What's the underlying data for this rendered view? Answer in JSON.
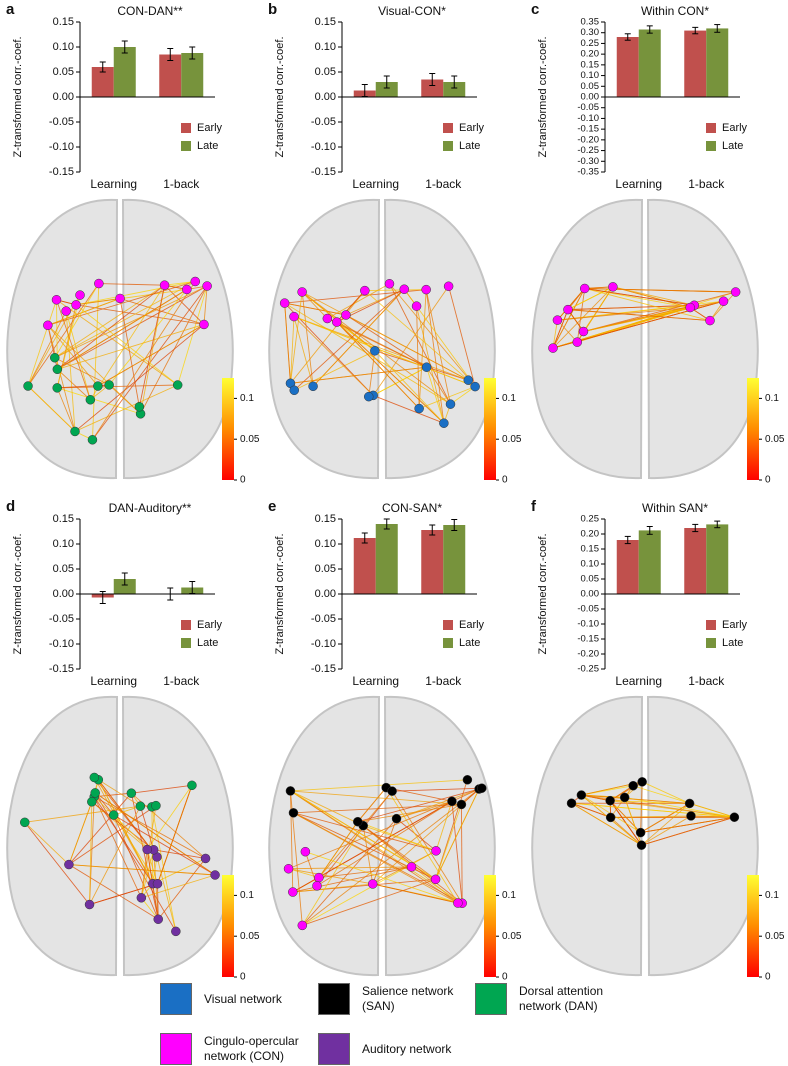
{
  "chart_data": [
    {
      "type": "bar",
      "panel": "a",
      "title": "CON-DAN**",
      "ylabel": "Z-transformed corr.-coef.",
      "categories": [
        "Learning",
        "1-back"
      ],
      "series": [
        {
          "name": "Early",
          "color": "#c0504d",
          "values": [
            0.06,
            0.085
          ],
          "errors": [
            0.01,
            0.012
          ]
        },
        {
          "name": "Late",
          "color": "#77933c",
          "values": [
            0.1,
            0.088
          ],
          "errors": [
            0.012,
            0.012
          ]
        }
      ],
      "ylim": [
        -0.15,
        0.15
      ],
      "yticks": [
        0.15,
        {
          "value": 0.1,
          "label": "0.10"
        },
        0.05,
        {
          "value": 0,
          "label": "0.00"
        },
        -0.05,
        {
          "value": -0.1,
          "label": "-0.10"
        },
        -0.15
      ],
      "colorbar": {
        "lim": [
          0,
          0.125
        ],
        "ticks": [
          0,
          0.05,
          0.1
        ]
      }
    },
    {
      "type": "bar",
      "panel": "b",
      "title": "Visual-CON*",
      "ylabel": "Z-transformed corr.-coef.",
      "categories": [
        "Learning",
        "1-back"
      ],
      "series": [
        {
          "name": "Early",
          "color": "#c0504d",
          "values": [
            0.013,
            0.035
          ],
          "errors": [
            0.012,
            0.012
          ]
        },
        {
          "name": "Late",
          "color": "#77933c",
          "values": [
            0.03,
            0.03
          ],
          "errors": [
            0.012,
            0.012
          ]
        }
      ],
      "ylim": [
        -0.15,
        0.15
      ],
      "yticks": [
        0.15,
        {
          "value": 0.1,
          "label": "0.10"
        },
        0.05,
        {
          "value": 0,
          "label": "0.00"
        },
        -0.05,
        {
          "value": -0.1,
          "label": "-0.10"
        },
        -0.15
      ],
      "colorbar": {
        "lim": [
          0,
          0.125
        ],
        "ticks": [
          0,
          0.05,
          0.1
        ]
      }
    },
    {
      "type": "bar",
      "panel": "c",
      "title": "Within CON*",
      "ylabel": "Z-transformed corr.-coef.",
      "categories": [
        "Learning",
        "1-back"
      ],
      "series": [
        {
          "name": "Early",
          "color": "#c0504d",
          "values": [
            0.28,
            0.31
          ],
          "errors": [
            0.015,
            0.015
          ]
        },
        {
          "name": "Late",
          "color": "#77933c",
          "values": [
            0.315,
            0.32
          ],
          "errors": [
            0.017,
            0.018
          ]
        }
      ],
      "ylim": [
        -0.35,
        0.35
      ],
      "yticks": [
        0.35,
        {
          "value": 0.3,
          "label": "0.30"
        },
        0.25,
        {
          "value": 0.2,
          "label": "0.20"
        },
        0.15,
        {
          "value": 0.1,
          "label": "0.10"
        },
        0.05,
        {
          "value": 0,
          "label": "0.00"
        },
        -0.05,
        {
          "value": -0.1,
          "label": "-0.10"
        },
        -0.15,
        {
          "value": -0.2,
          "label": "-0.20"
        },
        -0.25,
        {
          "value": -0.3,
          "label": "-0.30"
        },
        -0.35
      ],
      "colorbar": {
        "lim": [
          0,
          0.125
        ],
        "ticks": [
          0,
          0.05,
          0.1
        ]
      }
    },
    {
      "type": "bar",
      "panel": "d",
      "title": "DAN-Auditory**",
      "ylabel": "Z-transformed corr.-coef.",
      "categories": [
        "Learning",
        "1-back"
      ],
      "series": [
        {
          "name": "Early",
          "color": "#c0504d",
          "values": [
            -0.007,
            0
          ],
          "errors": [
            0.012,
            0.012
          ]
        },
        {
          "name": "Late",
          "color": "#77933c",
          "values": [
            0.03,
            0.013
          ],
          "errors": [
            0.012,
            0.012
          ]
        }
      ],
      "ylim": [
        -0.15,
        0.15
      ],
      "yticks": [
        0.15,
        {
          "value": 0.1,
          "label": "0.10"
        },
        0.05,
        {
          "value": 0,
          "label": "0.00"
        },
        -0.05,
        {
          "value": -0.1,
          "label": "-0.10"
        },
        -0.15
      ],
      "colorbar": {
        "lim": [
          0,
          0.125
        ],
        "ticks": [
          0,
          0.05,
          0.1
        ]
      }
    },
    {
      "type": "bar",
      "panel": "e",
      "title": "CON-SAN*",
      "ylabel": "Z-transformed corr.-coef.",
      "categories": [
        "Learning",
        "1-back"
      ],
      "series": [
        {
          "name": "Early",
          "color": "#c0504d",
          "values": [
            0.112,
            0.128
          ],
          "errors": [
            0.01,
            0.01
          ]
        },
        {
          "name": "Late",
          "color": "#77933c",
          "values": [
            0.14,
            0.138
          ],
          "errors": [
            0.01,
            0.011
          ]
        }
      ],
      "ylim": [
        -0.15,
        0.15
      ],
      "yticks": [
        0.15,
        {
          "value": 0.1,
          "label": "0.10"
        },
        0.05,
        {
          "value": 0,
          "label": "0.00"
        },
        -0.05,
        {
          "value": -0.1,
          "label": "-0.10"
        },
        -0.15
      ],
      "colorbar": {
        "lim": [
          0,
          0.125
        ],
        "ticks": [
          0,
          0.05,
          0.1
        ]
      }
    },
    {
      "type": "bar",
      "panel": "f",
      "title": "Within SAN*",
      "ylabel": "Z-transformed corr.-coef.",
      "categories": [
        "Learning",
        "1-back"
      ],
      "series": [
        {
          "name": "Early",
          "color": "#c0504d",
          "values": [
            0.18,
            0.22
          ],
          "errors": [
            0.012,
            0.012
          ]
        },
        {
          "name": "Late",
          "color": "#77933c",
          "values": [
            0.212,
            0.232
          ],
          "errors": [
            0.013,
            0.011
          ]
        }
      ],
      "ylim": [
        -0.25,
        0.25
      ],
      "yticks": [
        0.25,
        {
          "value": 0.2,
          "label": "0.20"
        },
        0.15,
        {
          "value": 0.1,
          "label": "0.10"
        },
        0.05,
        {
          "value": 0,
          "label": "0.00"
        },
        -0.05,
        {
          "value": -0.1,
          "label": "-0.10"
        },
        -0.15,
        {
          "value": -0.2,
          "label": "-0.20"
        },
        -0.25
      ],
      "colorbar": {
        "lim": [
          0,
          0.125
        ],
        "ticks": [
          0,
          0.05,
          0.1
        ]
      }
    }
  ],
  "network_legend": [
    {
      "label": "Visual network",
      "color": "#1a6fc4"
    },
    {
      "label": "Salience network (SAN)",
      "color": "#000000"
    },
    {
      "label": "Dorsal attention network (DAN)",
      "color": "#00a651"
    },
    {
      "label": "Cingulo-opercular network (CON)",
      "color": "#ff00ff"
    },
    {
      "label": "Auditory network",
      "color": "#7030a0"
    }
  ]
}
